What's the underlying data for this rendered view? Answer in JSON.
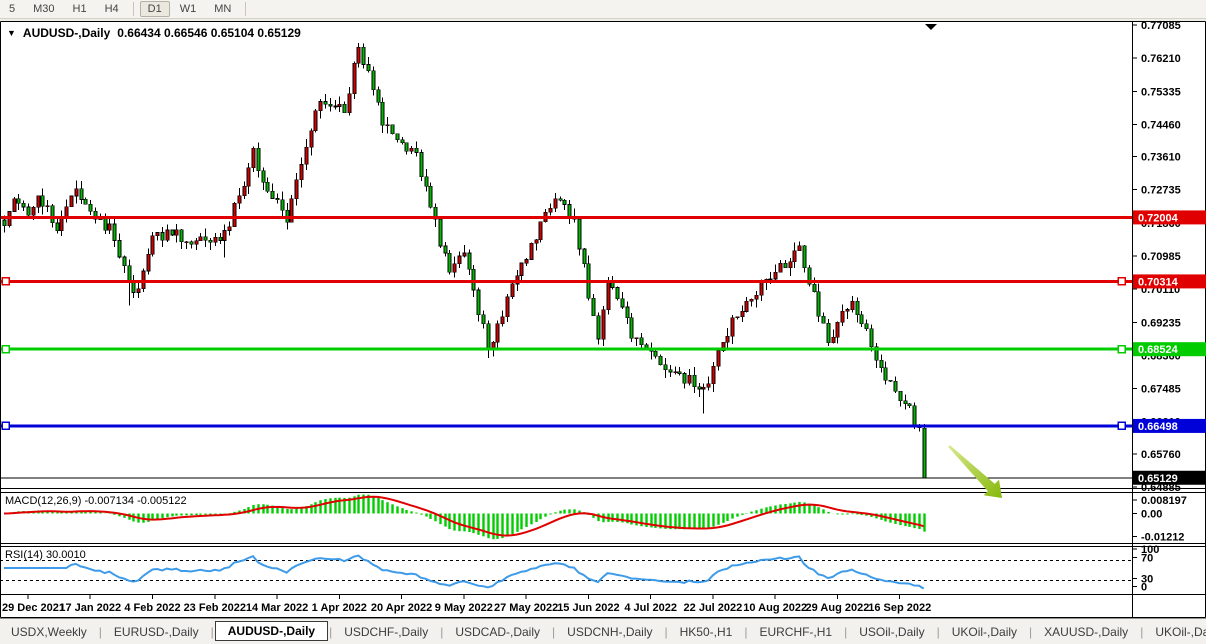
{
  "toolbar": {
    "timeframes": [
      "5",
      "M30",
      "H1",
      "H4",
      "D1",
      "W1",
      "MN"
    ],
    "active_timeframe": "D1",
    "separator_after": [
      "H4",
      "MN"
    ]
  },
  "chart": {
    "title_symbol": "AUDUSD-,Daily",
    "title_ohlc": "0.66434 0.66546 0.65104 0.65129",
    "dropdown_icon": "▼",
    "macd": {
      "label": "MACD(12,26,9) -0.007134 -0.005122"
    },
    "rsi": {
      "label": "RSI(14) 30.0010"
    }
  },
  "chart_data": {
    "type": "candlestick",
    "symbol": "AUDUSD-,Daily",
    "timeframe": "Daily",
    "last_bar": {
      "open": 0.66434,
      "high": 0.66546,
      "low": 0.65104,
      "close": 0.65129
    },
    "current_price": 0.65129,
    "current_price_label": "0.65129",
    "y_axis_ticks": [
      "0.77085",
      "0.76210",
      "0.75335",
      "0.74460",
      "0.73610",
      "0.72735",
      "0.71860",
      "0.70985",
      "0.70110",
      "0.69235",
      "0.68360",
      "0.67485",
      "0.66610",
      "0.65760",
      "0.64885"
    ],
    "x_axis_dates": [
      "29 Dec 2021",
      "17 Jan 2022",
      "4 Feb 2022",
      "23 Feb 2022",
      "14 Mar 2022",
      "1 Apr 2022",
      "20 Apr 2022",
      "9 May 2022",
      "27 May 2022",
      "15 Jun 2022",
      "4 Jul 2022",
      "22 Jul 2022",
      "10 Aug 2022",
      "29 Aug 2022",
      "16 Sep 2022"
    ],
    "horizontal_lines": [
      {
        "price": 0.72004,
        "label": "0.72004",
        "color": "#E00000",
        "handles": false
      },
      {
        "price": 0.70314,
        "label": "0.70314",
        "color": "#E00000",
        "handles": true
      },
      {
        "price": 0.68524,
        "label": "0.68524",
        "color": "#00CC00",
        "handles": true
      },
      {
        "price": 0.66498,
        "label": "0.66498",
        "color": "#0000D8",
        "handles": true
      }
    ],
    "bars_total": 193,
    "close_anchors": [
      [
        0,
        0.719
      ],
      [
        2,
        0.724
      ],
      [
        5,
        0.7222
      ],
      [
        7,
        0.7263
      ],
      [
        9,
        0.7227
      ],
      [
        11,
        0.7155
      ],
      [
        15,
        0.7285
      ],
      [
        19,
        0.7183
      ],
      [
        22,
        0.718
      ],
      [
        26,
        0.7023
      ],
      [
        27,
        0.699
      ],
      [
        31,
        0.714
      ],
      [
        36,
        0.717
      ],
      [
        38,
        0.713
      ],
      [
        46,
        0.7155
      ],
      [
        52,
        0.737
      ],
      [
        53,
        0.7315
      ],
      [
        59,
        0.7195
      ],
      [
        66,
        0.7515
      ],
      [
        71,
        0.7485
      ],
      [
        74,
        0.7655
      ],
      [
        79,
        0.7455
      ],
      [
        86,
        0.7365
      ],
      [
        92,
        0.7095
      ],
      [
        93,
        0.705
      ],
      [
        96,
        0.711
      ],
      [
        101,
        0.6855
      ],
      [
        107,
        0.704
      ],
      [
        112,
        0.718
      ],
      [
        116,
        0.726
      ],
      [
        119,
        0.719
      ],
      [
        124,
        0.687
      ],
      [
        126,
        0.7045
      ],
      [
        131,
        0.6895
      ],
      [
        137,
        0.6815
      ],
      [
        146,
        0.6745
      ],
      [
        152,
        0.6925
      ],
      [
        158,
        0.7025
      ],
      [
        166,
        0.711
      ],
      [
        172,
        0.6875
      ],
      [
        177,
        0.699
      ],
      [
        183,
        0.6795
      ],
      [
        185,
        0.6775
      ],
      [
        186,
        0.6732
      ],
      [
        187,
        0.672
      ],
      [
        188,
        0.6724
      ],
      [
        189,
        0.669
      ],
      [
        190,
        0.6635
      ],
      [
        191,
        0.6645
      ],
      [
        192,
        0.65129
      ]
    ],
    "wick_spikes": {
      "26": {
        "low": 0.6968
      },
      "46": {
        "low": 0.7094
      },
      "74": {
        "high": 0.7661
      },
      "101": {
        "low": 0.6829
      },
      "146": {
        "low": 0.6682
      },
      "166": {
        "high": 0.7137
      }
    },
    "indicators": [
      {
        "name": "MACD",
        "params": "12,26,9",
        "values": [
          -0.007134,
          -0.005122
        ],
        "scale_ticks": [
          "0.008197",
          "0.00",
          "-0.01212"
        ]
      },
      {
        "name": "RSI",
        "params": "14",
        "value": "30.0010",
        "levels": [
          70,
          30
        ],
        "scale_ticks": [
          "100",
          "70",
          "30",
          "0"
        ]
      }
    ],
    "annotations": [
      {
        "type": "arrow",
        "direction": "down-right",
        "from": [
          949,
          425
        ],
        "to": [
          1002,
          477
        ]
      }
    ],
    "colors": {
      "up_candle": "#D40000",
      "down_candle": "#00BA00",
      "wick": "#000000",
      "macd_histogram": "#00CC00",
      "macd_signal": "#E00000",
      "rsi_line": "#3E9BE9",
      "arrow_start": "#D8E88C",
      "arrow_end": "#86B80A",
      "current_price_bg": "#000000"
    }
  },
  "tabs": {
    "items": [
      "USDX,Weekly",
      "EURUSD-,Daily",
      "AUDUSD-,Daily",
      "USDCHF-,Daily",
      "USDCAD-,Daily",
      "USDCNH-,Daily",
      "HK50-,H1",
      "EURCHF-,H1",
      "USOil-,Daily",
      "UKOil-,Daily",
      "XAUUSD-,Daily",
      "UKOil-,Da"
    ],
    "active": "AUDUSD-,Daily",
    "scroll_left_icon": "◄",
    "scroll_right_icon": "►"
  }
}
